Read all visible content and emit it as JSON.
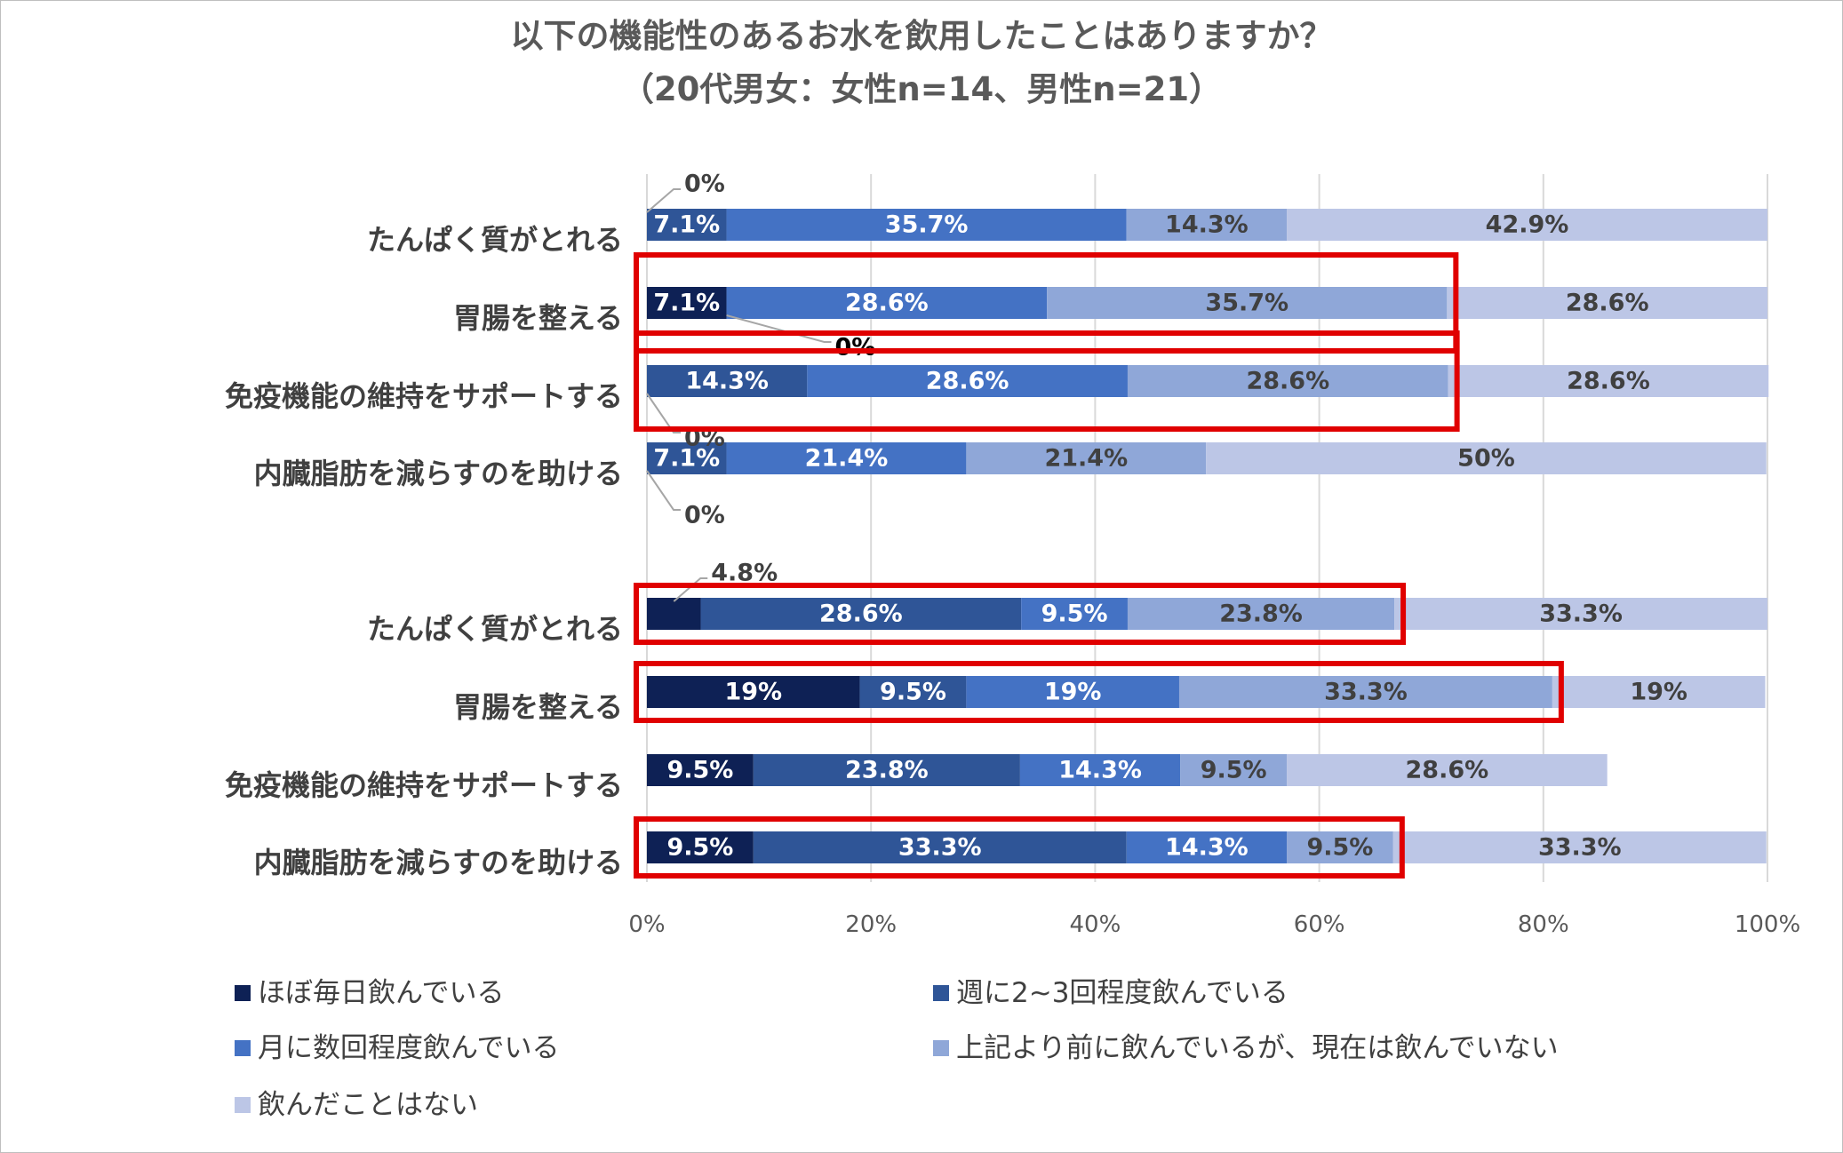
{
  "chart_data": {
    "type": "bar",
    "orientation": "horizontal",
    "stacked": true,
    "title": "以下の機能性のあるお水を飲用したことはありますか？",
    "subtitle": "（20代男女：女性n=14、男性n=21）",
    "xlim": [
      0,
      100
    ],
    "x_ticks": [
      "0%",
      "20%",
      "40%",
      "60%",
      "80%",
      "100%"
    ],
    "grid": true,
    "legend_position": "bottom",
    "colors": [
      "#0e2155",
      "#2f5597",
      "#4472c4",
      "#8fa7d8",
      "#bcc6e6"
    ],
    "series_names": [
      "ほぼ毎日飲んでいる",
      "週に2~3回程度飲んでいる",
      "月に数回程度飲んでいる",
      "上記より前に飲んでいるが、現在は飲んでいない",
      "飲んだことはない"
    ],
    "rows": [
      {
        "category": "たんぱく質がとれる",
        "values": [
          0,
          7.1,
          35.7,
          14.3,
          42.9
        ],
        "labels": [
          "0%",
          "7.1%",
          "35.7%",
          "14.3%",
          "42.9%"
        ]
      },
      {
        "category": "胃腸を整える",
        "values": [
          7.1,
          0,
          28.6,
          35.7,
          28.6
        ],
        "labels": [
          "7.1%",
          "0%",
          "28.6%",
          "35.7%",
          "28.6%"
        ]
      },
      {
        "category": "免疫機能の維持をサポートする",
        "values": [
          0,
          14.3,
          28.6,
          28.6,
          28.6
        ],
        "labels": [
          "0%",
          "14.3%",
          "28.6%",
          "28.6%",
          "28.6%"
        ]
      },
      {
        "category": "内臓脂肪を減らすのを助ける",
        "values": [
          0,
          7.1,
          21.4,
          21.4,
          50
        ],
        "labels": [
          "0%",
          "7.1%",
          "21.4%",
          "21.4%",
          "50%"
        ]
      },
      {
        "category": "たんぱく質がとれる",
        "values": [
          4.8,
          28.6,
          9.5,
          23.8,
          33.3
        ],
        "labels": [
          "4.8%",
          "28.6%",
          "9.5%",
          "23.8%",
          "33.3%"
        ]
      },
      {
        "category": "胃腸を整える",
        "values": [
          19,
          9.5,
          19,
          33.3,
          19
        ],
        "labels": [
          "19%",
          "9.5%",
          "19%",
          "33.3%",
          "19%"
        ]
      },
      {
        "category": "免疫機能の維持をサポートする",
        "values": [
          9.5,
          23.8,
          14.3,
          9.5,
          28.6
        ],
        "labels": [
          "9.5%",
          "23.8%",
          "14.3%",
          "9.5%",
          "28.6%"
        ]
      },
      {
        "category": "内臓脂肪を減らすのを助ける",
        "values": [
          9.5,
          33.3,
          14.3,
          9.5,
          33.3
        ],
        "labels": [
          "9.5%",
          "33.3%",
          "14.3%",
          "9.5%",
          "33.3%"
        ]
      }
    ],
    "highlighted_rows": [
      1,
      2,
      4,
      5,
      7
    ],
    "highlight_color": "#e00000"
  }
}
